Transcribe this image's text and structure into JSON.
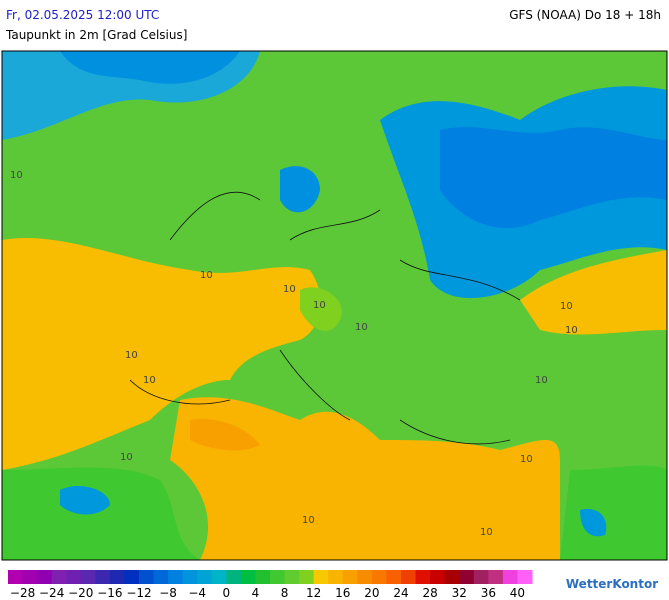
{
  "header": {
    "datetime": "Fr, 02.05.2025 12:00 UTC",
    "title": "Taupunkt in 2m [Grad Celsius]",
    "model": "GFS (NOAA) Do 18 + 18h"
  },
  "map": {
    "labels": [
      "10",
      "10",
      "10",
      "10",
      "10",
      "10",
      "10",
      "10",
      "10",
      "10",
      "10",
      "10",
      "10",
      "10"
    ]
  },
  "legend": {
    "range": [
      -30,
      42
    ],
    "ticks": [
      {
        "value": -28,
        "label": "−28"
      },
      {
        "value": -24,
        "label": "−24"
      },
      {
        "value": -20,
        "label": "−20"
      },
      {
        "value": -16,
        "label": "−16"
      },
      {
        "value": -12,
        "label": "−12"
      },
      {
        "value": -8,
        "label": "−8"
      },
      {
        "value": -4,
        "label": "−4"
      },
      0,
      4,
      8,
      12,
      16,
      20,
      24,
      28,
      32,
      36,
      40
    ],
    "colors": [
      "#b000b0",
      "#a000b0",
      "#9000b0",
      "#8020b0",
      "#7020b0",
      "#5a28b0",
      "#3c28b0",
      "#1e28b0",
      "#0030c0",
      "#0050d0",
      "#0068d8",
      "#0080e0",
      "#0094dc",
      "#00a4d4",
      "#00b4c8",
      "#00b480",
      "#00be40",
      "#20c030",
      "#40c830",
      "#60cc30",
      "#80d020",
      "#f8c800",
      "#f8b400",
      "#f8a000",
      "#f88c00",
      "#f87800",
      "#f86000",
      "#f04000",
      "#e01000",
      "#c80000",
      "#a80000",
      "#900030",
      "#a02060",
      "#c03080",
      "#f040e0",
      "#ff60f8"
    ]
  },
  "logo": "WetterKontor"
}
